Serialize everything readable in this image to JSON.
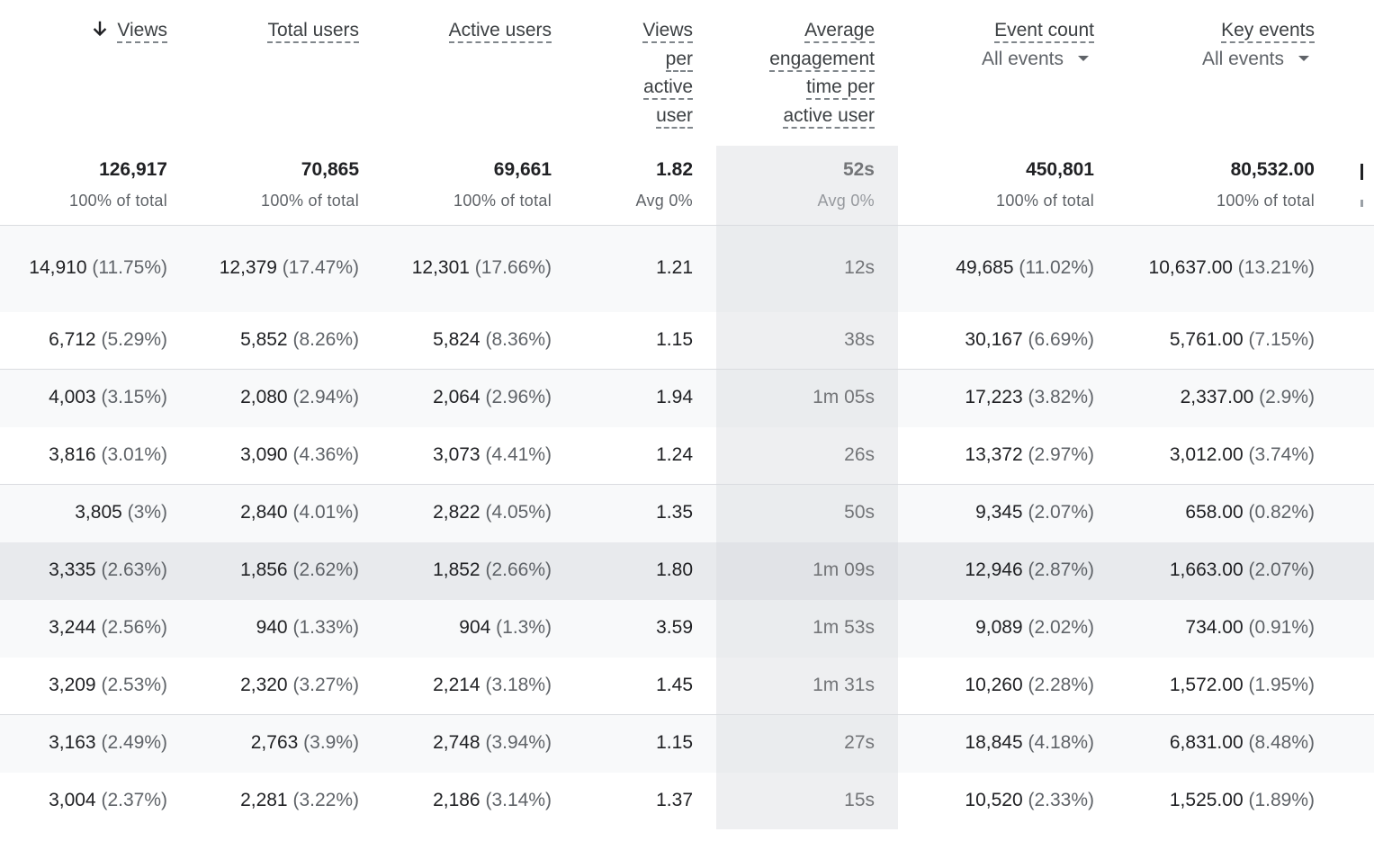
{
  "columns": [
    {
      "label_lines": [
        "Views"
      ],
      "sorted": true
    },
    {
      "label_lines": [
        "Total users"
      ]
    },
    {
      "label_lines": [
        "Active users"
      ]
    },
    {
      "label_lines": [
        "Views",
        "per",
        "active",
        "user"
      ]
    },
    {
      "label_lines": [
        "Average",
        "engagement",
        "time per",
        "active user"
      ]
    },
    {
      "label_lines": [
        "Event count"
      ],
      "dropdown": "All events"
    },
    {
      "label_lines": [
        "Key events"
      ],
      "dropdown": "All events"
    }
  ],
  "totals": [
    {
      "value": "126,917",
      "sub": "100% of total"
    },
    {
      "value": "70,865",
      "sub": "100% of total"
    },
    {
      "value": "69,661",
      "sub": "100% of total"
    },
    {
      "value": "1.82",
      "sub": "Avg 0%"
    },
    {
      "value": "52s",
      "sub": "Avg 0%"
    },
    {
      "value": "450,801",
      "sub": "100% of total"
    },
    {
      "value": "80,532.00",
      "sub": "100% of total"
    }
  ],
  "rows": [
    [
      [
        "14,910",
        "(11.75%)"
      ],
      [
        "12,379",
        "(17.47%)"
      ],
      [
        "12,301",
        "(17.66%)"
      ],
      [
        "1.21",
        ""
      ],
      [
        "12s",
        ""
      ],
      [
        "49,685",
        "(11.02%)"
      ],
      [
        "10,637.00",
        "(13.21%)"
      ]
    ],
    [
      [
        "6,712",
        "(5.29%)"
      ],
      [
        "5,852",
        "(8.26%)"
      ],
      [
        "5,824",
        "(8.36%)"
      ],
      [
        "1.15",
        ""
      ],
      [
        "38s",
        ""
      ],
      [
        "30,167",
        "(6.69%)"
      ],
      [
        "5,761.00",
        "(7.15%)"
      ]
    ],
    [
      [
        "4,003",
        "(3.15%)"
      ],
      [
        "2,080",
        "(2.94%)"
      ],
      [
        "2,064",
        "(2.96%)"
      ],
      [
        "1.94",
        ""
      ],
      [
        "1m 05s",
        ""
      ],
      [
        "17,223",
        "(3.82%)"
      ],
      [
        "2,337.00",
        "(2.9%)"
      ]
    ],
    [
      [
        "3,816",
        "(3.01%)"
      ],
      [
        "3,090",
        "(4.36%)"
      ],
      [
        "3,073",
        "(4.41%)"
      ],
      [
        "1.24",
        ""
      ],
      [
        "26s",
        ""
      ],
      [
        "13,372",
        "(2.97%)"
      ],
      [
        "3,012.00",
        "(3.74%)"
      ]
    ],
    [
      [
        "3,805",
        "(3%)"
      ],
      [
        "2,840",
        "(4.01%)"
      ],
      [
        "2,822",
        "(4.05%)"
      ],
      [
        "1.35",
        ""
      ],
      [
        "50s",
        ""
      ],
      [
        "9,345",
        "(2.07%)"
      ],
      [
        "658.00",
        "(0.82%)"
      ]
    ],
    [
      [
        "3,335",
        "(2.63%)"
      ],
      [
        "1,856",
        "(2.62%)"
      ],
      [
        "1,852",
        "(2.66%)"
      ],
      [
        "1.80",
        ""
      ],
      [
        "1m 09s",
        ""
      ],
      [
        "12,946",
        "(2.87%)"
      ],
      [
        "1,663.00",
        "(2.07%)"
      ]
    ],
    [
      [
        "3,244",
        "(2.56%)"
      ],
      [
        "940",
        "(1.33%)"
      ],
      [
        "904",
        "(1.3%)"
      ],
      [
        "3.59",
        ""
      ],
      [
        "1m 53s",
        ""
      ],
      [
        "9,089",
        "(2.02%)"
      ],
      [
        "734.00",
        "(0.91%)"
      ]
    ],
    [
      [
        "3,209",
        "(2.53%)"
      ],
      [
        "2,320",
        "(3.27%)"
      ],
      [
        "2,214",
        "(3.18%)"
      ],
      [
        "1.45",
        ""
      ],
      [
        "1m 31s",
        ""
      ],
      [
        "10,260",
        "(2.28%)"
      ],
      [
        "1,572.00",
        "(1.95%)"
      ]
    ],
    [
      [
        "3,163",
        "(2.49%)"
      ],
      [
        "2,763",
        "(3.9%)"
      ],
      [
        "2,748",
        "(3.94%)"
      ],
      [
        "1.15",
        ""
      ],
      [
        "27s",
        ""
      ],
      [
        "18,845",
        "(4.18%)"
      ],
      [
        "6,831.00",
        "(8.48%)"
      ]
    ],
    [
      [
        "3,004",
        "(2.37%)"
      ],
      [
        "2,281",
        "(3.22%)"
      ],
      [
        "2,186",
        "(3.14%)"
      ],
      [
        "1.37",
        ""
      ],
      [
        "15s",
        ""
      ],
      [
        "10,520",
        "(2.33%)"
      ],
      [
        "1,525.00",
        "(1.89%)"
      ]
    ]
  ],
  "hover_row_index": 5,
  "icons": {
    "sort": "arrow-down-icon",
    "dropdown": "caret-down-icon"
  }
}
